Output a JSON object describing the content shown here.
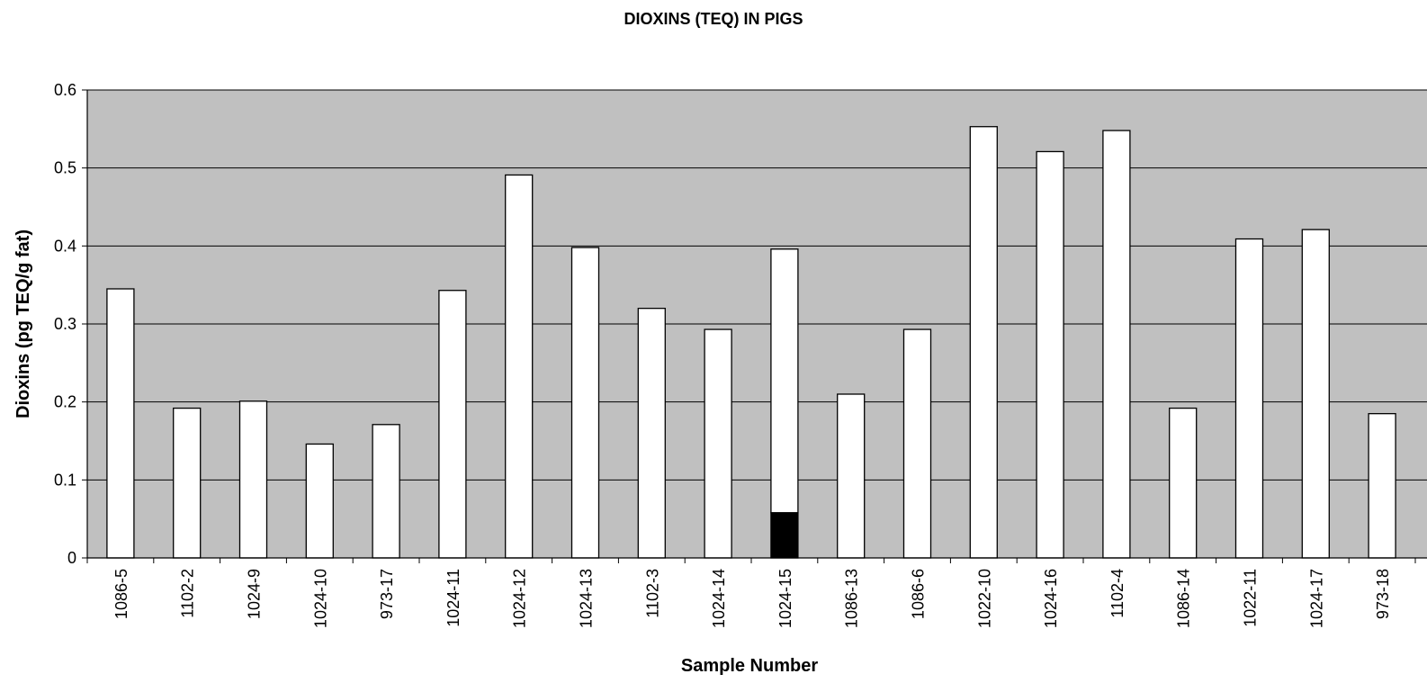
{
  "chart_data": {
    "type": "bar",
    "title": "DIOXINS (TEQ) IN PIGS",
    "xlabel": "Sample Number",
    "ylabel": "Dioxins (pg TEQ/g fat)",
    "ylim": [
      0,
      0.6
    ],
    "yticks": [
      "0",
      "0.1",
      "0.2",
      "0.3",
      "0.4",
      "0.5",
      "0.6"
    ],
    "grid": true,
    "stacked": true,
    "categories": [
      "1086-5",
      "1102-2",
      "1024-9",
      "1024-10",
      "973-17",
      "1024-11",
      "1024-12",
      "1024-13",
      "1102-3",
      "1024-14",
      "1024-15",
      "1086-13",
      "1086-6",
      "1022-10",
      "1024-16",
      "1102-4",
      "1086-14",
      "1022-11",
      "1024-17",
      "973-18"
    ],
    "series": [
      {
        "color": "#000000",
        "values": [
          0,
          0,
          0,
          0,
          0,
          0,
          0,
          0,
          0,
          0,
          0.058,
          0,
          0,
          0,
          0,
          0,
          0,
          0,
          0,
          0
        ]
      },
      {
        "color": "#ffffff",
        "values": [
          0.345,
          0.192,
          0.201,
          0.146,
          0.171,
          0.343,
          0.491,
          0.398,
          0.32,
          0.293,
          0.338,
          0.21,
          0.293,
          0.553,
          0.521,
          0.548,
          0.192,
          0.409,
          0.421,
          0.185
        ]
      }
    ],
    "colors": {
      "plot_background": "#c0c0c0",
      "gridline": "#000000"
    }
  }
}
